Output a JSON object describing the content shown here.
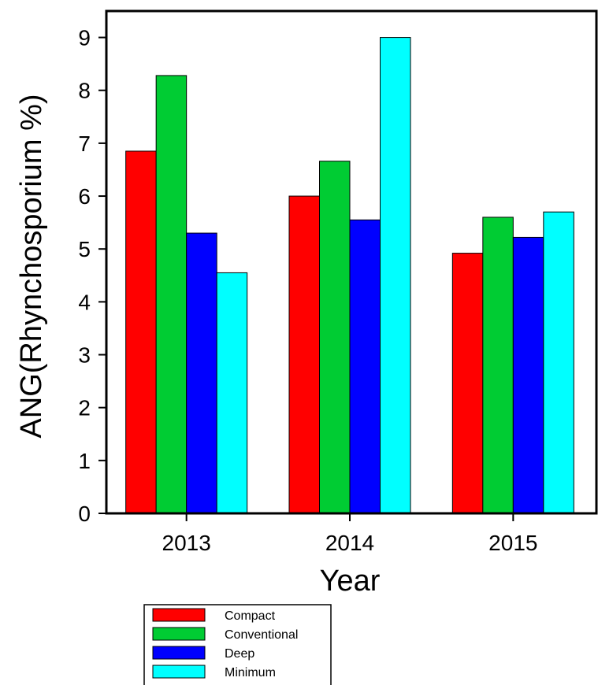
{
  "chart_data": {
    "type": "bar",
    "categories": [
      "2013",
      "2014",
      "2015"
    ],
    "series": [
      {
        "name": "Compact",
        "color": "#ff0000",
        "values": [
          6.85,
          6.0,
          4.92
        ]
      },
      {
        "name": "Conventional",
        "color": "#00cc33",
        "values": [
          8.28,
          6.66,
          5.6
        ]
      },
      {
        "name": "Deep",
        "color": "#0000ff",
        "values": [
          5.3,
          5.55,
          5.22
        ]
      },
      {
        "name": "Minimum",
        "color": "#00ffff",
        "values": [
          4.55,
          9.0,
          5.7
        ]
      }
    ],
    "xlabel": "Year",
    "ylabel": "ANG(Rhynchosporium %)",
    "ylim": [
      0,
      9.5
    ],
    "yticks": [
      0,
      1,
      2,
      3,
      4,
      5,
      6,
      7,
      8,
      9
    ],
    "grid": false,
    "legend_position": "bottom-left"
  }
}
